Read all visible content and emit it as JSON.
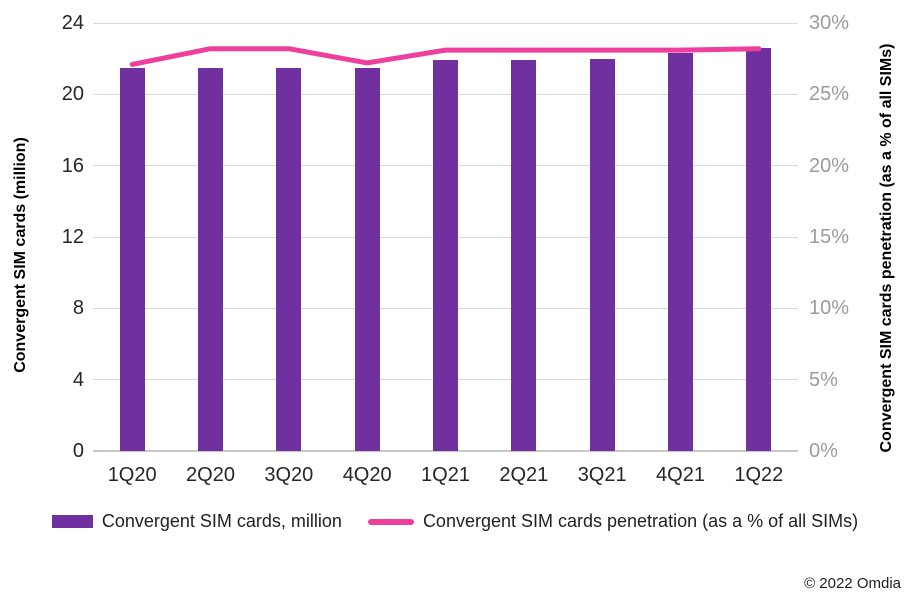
{
  "chart_data": {
    "type": "bar",
    "subtype": "combo-bar-line-dual-axis",
    "categories": [
      "1Q20",
      "2Q20",
      "3Q20",
      "4Q20",
      "1Q21",
      "2Q21",
      "3Q21",
      "4Q21",
      "1Q22"
    ],
    "series": [
      {
        "name": "Convergent SIM cards, million",
        "type": "bar",
        "axis": "left",
        "color": "#7030A0",
        "values": [
          21.5,
          21.5,
          21.5,
          21.5,
          21.9,
          21.9,
          22.0,
          22.3,
          22.6
        ]
      },
      {
        "name": "Convergent SIM cards penetration (as a % of all SIMs)",
        "type": "line",
        "axis": "right",
        "color": "#ED3F9B",
        "values": [
          27.1,
          28.2,
          28.2,
          27.2,
          28.1,
          28.1,
          28.1,
          28.1,
          28.2
        ]
      }
    ],
    "left_axis": {
      "label": "Convergent SIM cards (million)",
      "min": 0,
      "max": 24,
      "step": 4,
      "tick_labels": [
        "0",
        "4",
        "8",
        "12",
        "16",
        "20",
        "24"
      ]
    },
    "right_axis": {
      "label": "Convergent SIM cards penetration (as a % of all SIMs)",
      "min": 0,
      "max": 30,
      "step": 5,
      "tick_labels": [
        "0%",
        "5%",
        "10%",
        "15%",
        "20%",
        "25%",
        "30%"
      ]
    },
    "grid": true,
    "legend_position": "bottom",
    "title": ""
  },
  "footer": {
    "copyright": "© 2022 Omdia"
  }
}
